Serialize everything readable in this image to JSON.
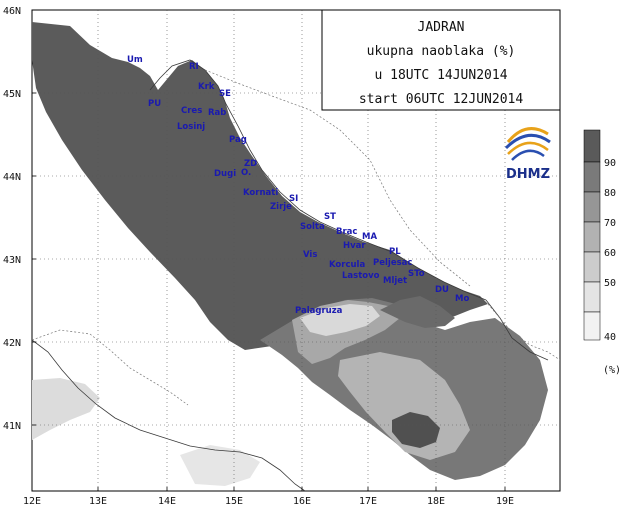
{
  "title_box": {
    "line1": "JADRAN",
    "line2": "ukupna naoblaka (%)",
    "line3": "u 18UTC 14JUN2014",
    "line4": "start 06UTC 12JUN2014"
  },
  "logo": {
    "text": "DHMZ",
    "icon": "dhmz-logo-icon"
  },
  "axes": {
    "lat_labels": [
      "46N",
      "45N",
      "44N",
      "43N",
      "42N",
      "41N"
    ],
    "lon_labels": [
      "12E",
      "13E",
      "14E",
      "15E",
      "16E",
      "17E",
      "18E",
      "19E"
    ]
  },
  "legend": {
    "unit": "(%)",
    "levels": [
      "90",
      "80",
      "70",
      "60",
      "50",
      "40"
    ],
    "colors": [
      "#5a5a5a",
      "#7a7a7a",
      "#969696",
      "#b2b2b2",
      "#cccccc",
      "#e4e4e4",
      "#f2f2f2"
    ]
  },
  "places": [
    {
      "name": "Um"
    },
    {
      "name": "RI"
    },
    {
      "name": "Krk"
    },
    {
      "name": "SE"
    },
    {
      "name": "PU"
    },
    {
      "name": "Cres"
    },
    {
      "name": "Rab"
    },
    {
      "name": "Losinj"
    },
    {
      "name": "Pag"
    },
    {
      "name": "ZD"
    },
    {
      "name": "Dugi"
    },
    {
      "name": "O."
    },
    {
      "name": "Kornati"
    },
    {
      "name": "SI"
    },
    {
      "name": "Zirje"
    },
    {
      "name": "ST"
    },
    {
      "name": "Solta"
    },
    {
      "name": "Brac"
    },
    {
      "name": "MA"
    },
    {
      "name": "Hvar"
    },
    {
      "name": "Vis"
    },
    {
      "name": "PL"
    },
    {
      "name": "Korcula"
    },
    {
      "name": "Peljesac"
    },
    {
      "name": "Lastovo"
    },
    {
      "name": "Mljet"
    },
    {
      "name": "STo"
    },
    {
      "name": "DU"
    },
    {
      "name": "Mo"
    },
    {
      "name": "Palagruza"
    }
  ]
}
